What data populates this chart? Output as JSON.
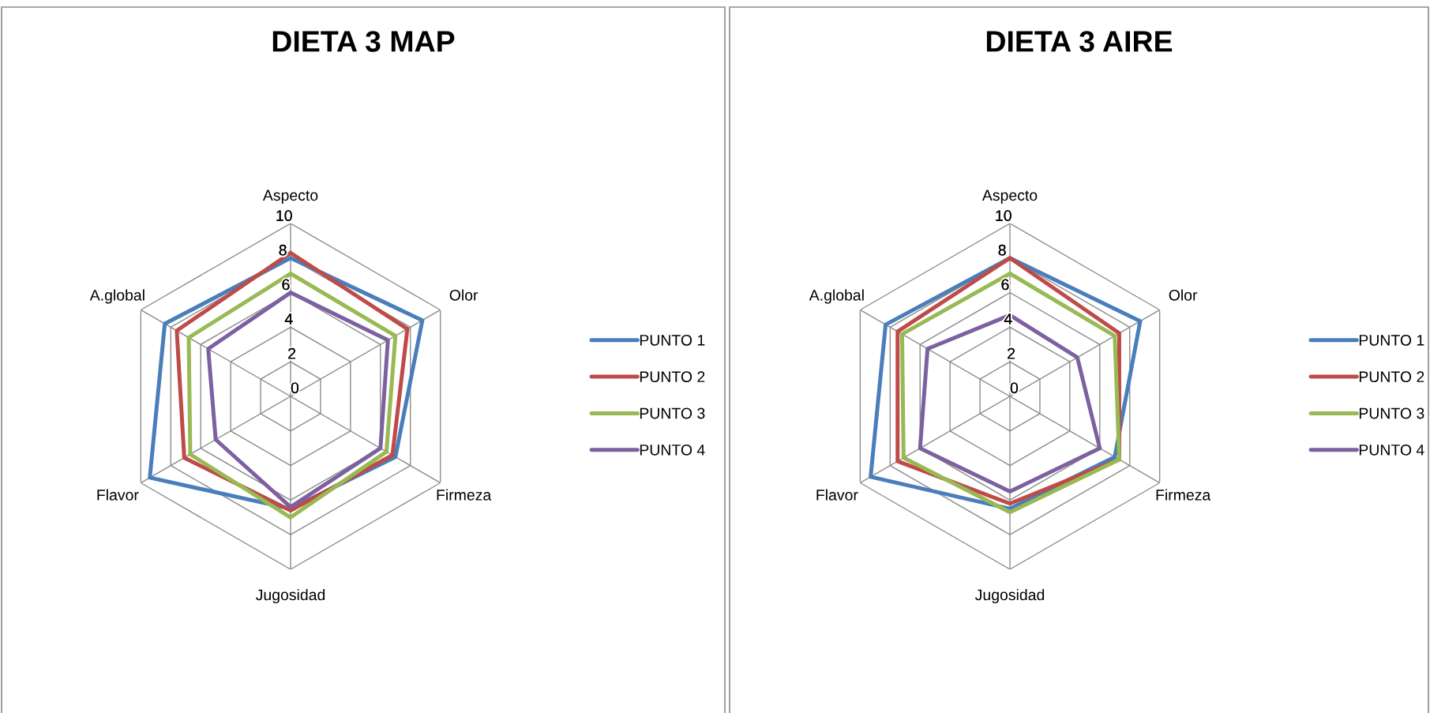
{
  "chart_data": [
    {
      "type": "radar",
      "title": "DIETA 3 MAP",
      "categories": [
        "Aspecto",
        "Olor",
        "Firmeza",
        "Jugosidad",
        "Flavor",
        "A.global"
      ],
      "series": [
        {
          "name": "PUNTO 1",
          "color": "#4a7ebb",
          "values": [
            8.0,
            8.8,
            7.0,
            6.5,
            9.4,
            8.4
          ]
        },
        {
          "name": "PUNTO 2",
          "color": "#be4b48",
          "values": [
            8.3,
            7.8,
            6.8,
            6.6,
            7.1,
            7.6
          ]
        },
        {
          "name": "PUNTO 3",
          "color": "#98b954",
          "values": [
            7.1,
            7.0,
            6.4,
            7.0,
            6.7,
            6.8
          ]
        },
        {
          "name": "PUNTO 4",
          "color": "#7d60a0",
          "values": [
            6.0,
            6.5,
            6.0,
            6.4,
            5.0,
            5.5
          ]
        }
      ],
      "ylim": [
        0,
        10
      ],
      "yticks": [
        0,
        2,
        4,
        6,
        8,
        10
      ],
      "grid": true,
      "legend": "right"
    },
    {
      "type": "radar",
      "title": "DIETA 3 AIRE",
      "categories": [
        "Aspecto",
        "Olor",
        "Firmeza",
        "Jugosidad",
        "Flavor",
        "A.global"
      ],
      "series": [
        {
          "name": "PUNTO 1",
          "color": "#4a7ebb",
          "values": [
            8.0,
            8.7,
            7.0,
            6.5,
            9.3,
            8.3
          ]
        },
        {
          "name": "PUNTO 2",
          "color": "#be4b48",
          "values": [
            8.0,
            7.3,
            7.3,
            6.2,
            7.5,
            7.5
          ]
        },
        {
          "name": "PUNTO 3",
          "color": "#98b954",
          "values": [
            7.1,
            7.0,
            7.3,
            6.7,
            7.1,
            7.2
          ]
        },
        {
          "name": "PUNTO 4",
          "color": "#7d60a0",
          "values": [
            4.7,
            4.5,
            6.0,
            5.5,
            6.0,
            5.5
          ]
        }
      ],
      "ylim": [
        0,
        10
      ],
      "yticks": [
        0,
        2,
        4,
        6,
        8,
        10
      ],
      "grid": true,
      "legend": "right"
    }
  ]
}
